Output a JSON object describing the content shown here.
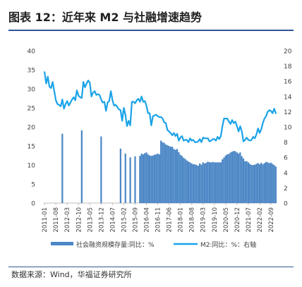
{
  "title": "图表 12：近年来 M2 与社融增速趋势",
  "source": "数据来源：Wind，华福证券研究所",
  "colors": {
    "bar": "#4a86c5",
    "line": "#1aa3e8",
    "rule": "#2f5597",
    "axis": "#bfbfbf"
  },
  "chart_data": {
    "type": "bar+line",
    "left_ylim": [
      0,
      40
    ],
    "left_yticks": [
      "0",
      "5",
      "10",
      "15",
      "20",
      "25",
      "30",
      "35",
      "40"
    ],
    "right_ylim": [
      0,
      20
    ],
    "right_yticks": [
      "0",
      "2",
      "4",
      "6",
      "8",
      "10",
      "12",
      "14",
      "16",
      "18",
      "20"
    ],
    "x_start": "2011-01",
    "x_end": "2022-12",
    "x_ticks": [
      "2011-01",
      "2011-08",
      "2012-03",
      "2012-10",
      "2013-05",
      "2013-12",
      "2014-07",
      "2015-02",
      "2015-09",
      "2016-04",
      "2016-11",
      "2017-06",
      "2018-01",
      "2018-08",
      "2019-03",
      "2019-10",
      "2020-05",
      "2020-12",
      "2021-07",
      "2022-02",
      "2022-09"
    ],
    "legend": [
      "社会融资规模存量:同比：%",
      "M2:同比：%：右轴"
    ],
    "legend_position": "bottom",
    "grid": false,
    "series": [
      {
        "name": "社会融资规模存量:同比：%",
        "axis": "left",
        "kind": "bar",
        "points": [
          [
            "2011-12",
            18.2
          ],
          [
            "2012-12",
            19.1
          ],
          [
            "2013-12",
            17.5
          ],
          [
            "2014-12",
            14.3
          ],
          [
            "2015-03",
            13.0
          ],
          [
            "2015-06",
            12.0
          ],
          [
            "2015-09",
            12.3
          ],
          [
            "2015-12",
            12.4
          ],
          [
            "2016-01",
            13.0
          ],
          [
            "2016-02",
            12.8
          ],
          [
            "2016-03",
            13.1
          ],
          [
            "2016-04",
            13.3
          ],
          [
            "2016-05",
            12.8
          ],
          [
            "2016-06",
            12.5
          ],
          [
            "2016-07",
            12.4
          ],
          [
            "2016-08",
            12.5
          ],
          [
            "2016-09",
            12.7
          ],
          [
            "2016-10",
            12.8
          ],
          [
            "2016-11",
            13.0
          ],
          [
            "2016-12",
            12.8
          ],
          [
            "2017-01",
            16.4
          ],
          [
            "2017-02",
            16.0
          ],
          [
            "2017-03",
            15.8
          ],
          [
            "2017-04",
            15.4
          ],
          [
            "2017-05",
            15.2
          ],
          [
            "2017-06",
            15.0
          ],
          [
            "2017-07",
            14.8
          ],
          [
            "2017-08",
            14.8
          ],
          [
            "2017-09",
            14.2
          ],
          [
            "2017-10",
            14.0
          ],
          [
            "2017-11",
            14.2
          ],
          [
            "2017-12",
            13.4
          ],
          [
            "2018-01",
            12.7
          ],
          [
            "2018-02",
            12.4
          ],
          [
            "2018-03",
            11.9
          ],
          [
            "2018-04",
            11.6
          ],
          [
            "2018-05",
            11.2
          ],
          [
            "2018-06",
            10.9
          ],
          [
            "2018-07",
            10.7
          ],
          [
            "2018-08",
            10.4
          ],
          [
            "2018-09",
            10.2
          ],
          [
            "2018-10",
            10.2
          ],
          [
            "2018-11",
            10.0
          ],
          [
            "2018-12",
            9.8
          ],
          [
            "2019-01",
            10.4
          ],
          [
            "2019-02",
            10.1
          ],
          [
            "2019-03",
            10.7
          ],
          [
            "2019-04",
            10.4
          ],
          [
            "2019-05",
            10.6
          ],
          [
            "2019-06",
            10.9
          ],
          [
            "2019-07",
            10.7
          ],
          [
            "2019-08",
            10.7
          ],
          [
            "2019-09",
            10.8
          ],
          [
            "2019-10",
            10.7
          ],
          [
            "2019-11",
            10.7
          ],
          [
            "2019-12",
            10.7
          ],
          [
            "2020-01",
            10.7
          ],
          [
            "2020-02",
            10.7
          ],
          [
            "2020-03",
            11.5
          ],
          [
            "2020-04",
            12.0
          ],
          [
            "2020-05",
            12.5
          ],
          [
            "2020-06",
            12.8
          ],
          [
            "2020-07",
            12.9
          ],
          [
            "2020-08",
            13.3
          ],
          [
            "2020-09",
            13.5
          ],
          [
            "2020-10",
            13.7
          ],
          [
            "2020-11",
            13.6
          ],
          [
            "2020-12",
            13.3
          ],
          [
            "2021-01",
            13.0
          ],
          [
            "2021-02",
            13.3
          ],
          [
            "2021-03",
            12.3
          ],
          [
            "2021-04",
            11.7
          ],
          [
            "2021-05",
            11.0
          ],
          [
            "2021-06",
            11.0
          ],
          [
            "2021-07",
            10.7
          ],
          [
            "2021-08",
            10.3
          ],
          [
            "2021-09",
            10.0
          ],
          [
            "2021-10",
            10.0
          ],
          [
            "2021-11",
            10.1
          ],
          [
            "2021-12",
            10.3
          ],
          [
            "2022-01",
            10.5
          ],
          [
            "2022-02",
            10.2
          ],
          [
            "2022-03",
            10.6
          ],
          [
            "2022-04",
            10.2
          ],
          [
            "2022-05",
            10.5
          ],
          [
            "2022-06",
            10.8
          ],
          [
            "2022-07",
            10.7
          ],
          [
            "2022-08",
            10.5
          ],
          [
            "2022-09",
            10.6
          ],
          [
            "2022-10",
            10.3
          ],
          [
            "2022-11",
            10.0
          ],
          [
            "2022-12",
            9.6
          ]
        ]
      },
      {
        "name": "M2:同比：%：右轴",
        "axis": "right",
        "kind": "line",
        "points": [
          [
            "2011-01",
            17.2
          ],
          [
            "2011-02",
            15.7
          ],
          [
            "2011-03",
            16.6
          ],
          [
            "2011-04",
            15.3
          ],
          [
            "2011-05",
            15.1
          ],
          [
            "2011-06",
            15.9
          ],
          [
            "2011-07",
            14.7
          ],
          [
            "2011-08",
            13.5
          ],
          [
            "2011-09",
            13.0
          ],
          [
            "2011-10",
            12.9
          ],
          [
            "2011-11",
            12.7
          ],
          [
            "2011-12",
            13.6
          ],
          [
            "2012-01",
            12.4
          ],
          [
            "2012-02",
            13.0
          ],
          [
            "2012-03",
            13.4
          ],
          [
            "2012-04",
            12.8
          ],
          [
            "2012-05",
            13.2
          ],
          [
            "2012-06",
            13.6
          ],
          [
            "2012-07",
            13.9
          ],
          [
            "2012-08",
            13.5
          ],
          [
            "2012-09",
            14.8
          ],
          [
            "2012-10",
            14.1
          ],
          [
            "2012-11",
            13.9
          ],
          [
            "2012-12",
            13.8
          ],
          [
            "2013-01",
            15.9
          ],
          [
            "2013-02",
            15.2
          ],
          [
            "2013-03",
            15.7
          ],
          [
            "2013-04",
            16.1
          ],
          [
            "2013-05",
            15.8
          ],
          [
            "2013-06",
            14.0
          ],
          [
            "2013-07",
            14.5
          ],
          [
            "2013-08",
            14.7
          ],
          [
            "2013-09",
            14.2
          ],
          [
            "2013-10",
            14.3
          ],
          [
            "2013-11",
            14.2
          ],
          [
            "2013-12",
            13.6
          ],
          [
            "2014-01",
            13.2
          ],
          [
            "2014-02",
            13.3
          ],
          [
            "2014-03",
            12.1
          ],
          [
            "2014-04",
            13.2
          ],
          [
            "2014-05",
            13.4
          ],
          [
            "2014-06",
            14.7
          ],
          [
            "2014-07",
            13.5
          ],
          [
            "2014-08",
            12.8
          ],
          [
            "2014-09",
            12.9
          ],
          [
            "2014-10",
            12.6
          ],
          [
            "2014-11",
            12.3
          ],
          [
            "2014-12",
            12.2
          ],
          [
            "2015-01",
            10.8
          ],
          [
            "2015-02",
            12.5
          ],
          [
            "2015-03",
            11.6
          ],
          [
            "2015-04",
            10.1
          ],
          [
            "2015-05",
            10.8
          ],
          [
            "2015-06",
            10.2
          ],
          [
            "2015-07",
            13.3
          ],
          [
            "2015-08",
            13.3
          ],
          [
            "2015-09",
            13.1
          ],
          [
            "2015-10",
            13.5
          ],
          [
            "2015-11",
            13.7
          ],
          [
            "2015-12",
            13.3
          ],
          [
            "2016-01",
            14.0
          ],
          [
            "2016-02",
            13.3
          ],
          [
            "2016-03",
            13.4
          ],
          [
            "2016-04",
            12.8
          ],
          [
            "2016-05",
            11.8
          ],
          [
            "2016-06",
            11.8
          ],
          [
            "2016-07",
            10.2
          ],
          [
            "2016-08",
            11.4
          ],
          [
            "2016-09",
            11.5
          ],
          [
            "2016-10",
            11.6
          ],
          [
            "2016-11",
            11.4
          ],
          [
            "2016-12",
            11.3
          ],
          [
            "2017-01",
            11.3
          ],
          [
            "2017-02",
            11.1
          ],
          [
            "2017-03",
            10.6
          ],
          [
            "2017-04",
            10.5
          ],
          [
            "2017-05",
            9.6
          ],
          [
            "2017-06",
            9.4
          ],
          [
            "2017-07",
            9.2
          ],
          [
            "2017-08",
            8.9
          ],
          [
            "2017-09",
            9.2
          ],
          [
            "2017-10",
            8.8
          ],
          [
            "2017-11",
            9.1
          ],
          [
            "2017-12",
            8.2
          ],
          [
            "2018-01",
            8.6
          ],
          [
            "2018-02",
            8.8
          ],
          [
            "2018-03",
            8.2
          ],
          [
            "2018-04",
            8.3
          ],
          [
            "2018-05",
            8.3
          ],
          [
            "2018-06",
            8.0
          ],
          [
            "2018-07",
            8.5
          ],
          [
            "2018-08",
            8.2
          ],
          [
            "2018-09",
            8.3
          ],
          [
            "2018-10",
            8.0
          ],
          [
            "2018-11",
            8.0
          ],
          [
            "2018-12",
            8.1
          ],
          [
            "2019-01",
            8.4
          ],
          [
            "2019-02",
            8.0
          ],
          [
            "2019-03",
            8.6
          ],
          [
            "2019-04",
            8.5
          ],
          [
            "2019-05",
            8.5
          ],
          [
            "2019-06",
            8.5
          ],
          [
            "2019-07",
            8.1
          ],
          [
            "2019-08",
            8.2
          ],
          [
            "2019-09",
            8.4
          ],
          [
            "2019-10",
            8.4
          ],
          [
            "2019-11",
            8.2
          ],
          [
            "2019-12",
            8.7
          ],
          [
            "2020-01",
            8.4
          ],
          [
            "2020-02",
            8.8
          ],
          [
            "2020-03",
            10.1
          ],
          [
            "2020-04",
            11.1
          ],
          [
            "2020-05",
            11.1
          ],
          [
            "2020-06",
            11.1
          ],
          [
            "2020-07",
            10.7
          ],
          [
            "2020-08",
            10.4
          ],
          [
            "2020-09",
            10.9
          ],
          [
            "2020-10",
            10.5
          ],
          [
            "2020-11",
            10.7
          ],
          [
            "2020-12",
            10.1
          ],
          [
            "2021-01",
            9.4
          ],
          [
            "2021-02",
            10.1
          ],
          [
            "2021-03",
            9.4
          ],
          [
            "2021-04",
            8.1
          ],
          [
            "2021-05",
            8.3
          ],
          [
            "2021-06",
            8.6
          ],
          [
            "2021-07",
            8.3
          ],
          [
            "2021-08",
            8.2
          ],
          [
            "2021-09",
            8.3
          ],
          [
            "2021-10",
            8.7
          ],
          [
            "2021-11",
            8.5
          ],
          [
            "2021-12",
            9.0
          ],
          [
            "2022-01",
            9.8
          ],
          [
            "2022-02",
            9.2
          ],
          [
            "2022-03",
            9.7
          ],
          [
            "2022-04",
            10.5
          ],
          [
            "2022-05",
            11.1
          ],
          [
            "2022-06",
            11.4
          ],
          [
            "2022-07",
            12.0
          ],
          [
            "2022-08",
            12.2
          ],
          [
            "2022-09",
            12.1
          ],
          [
            "2022-10",
            11.8
          ],
          [
            "2022-11",
            12.4
          ],
          [
            "2022-12",
            11.8
          ]
        ]
      }
    ]
  }
}
